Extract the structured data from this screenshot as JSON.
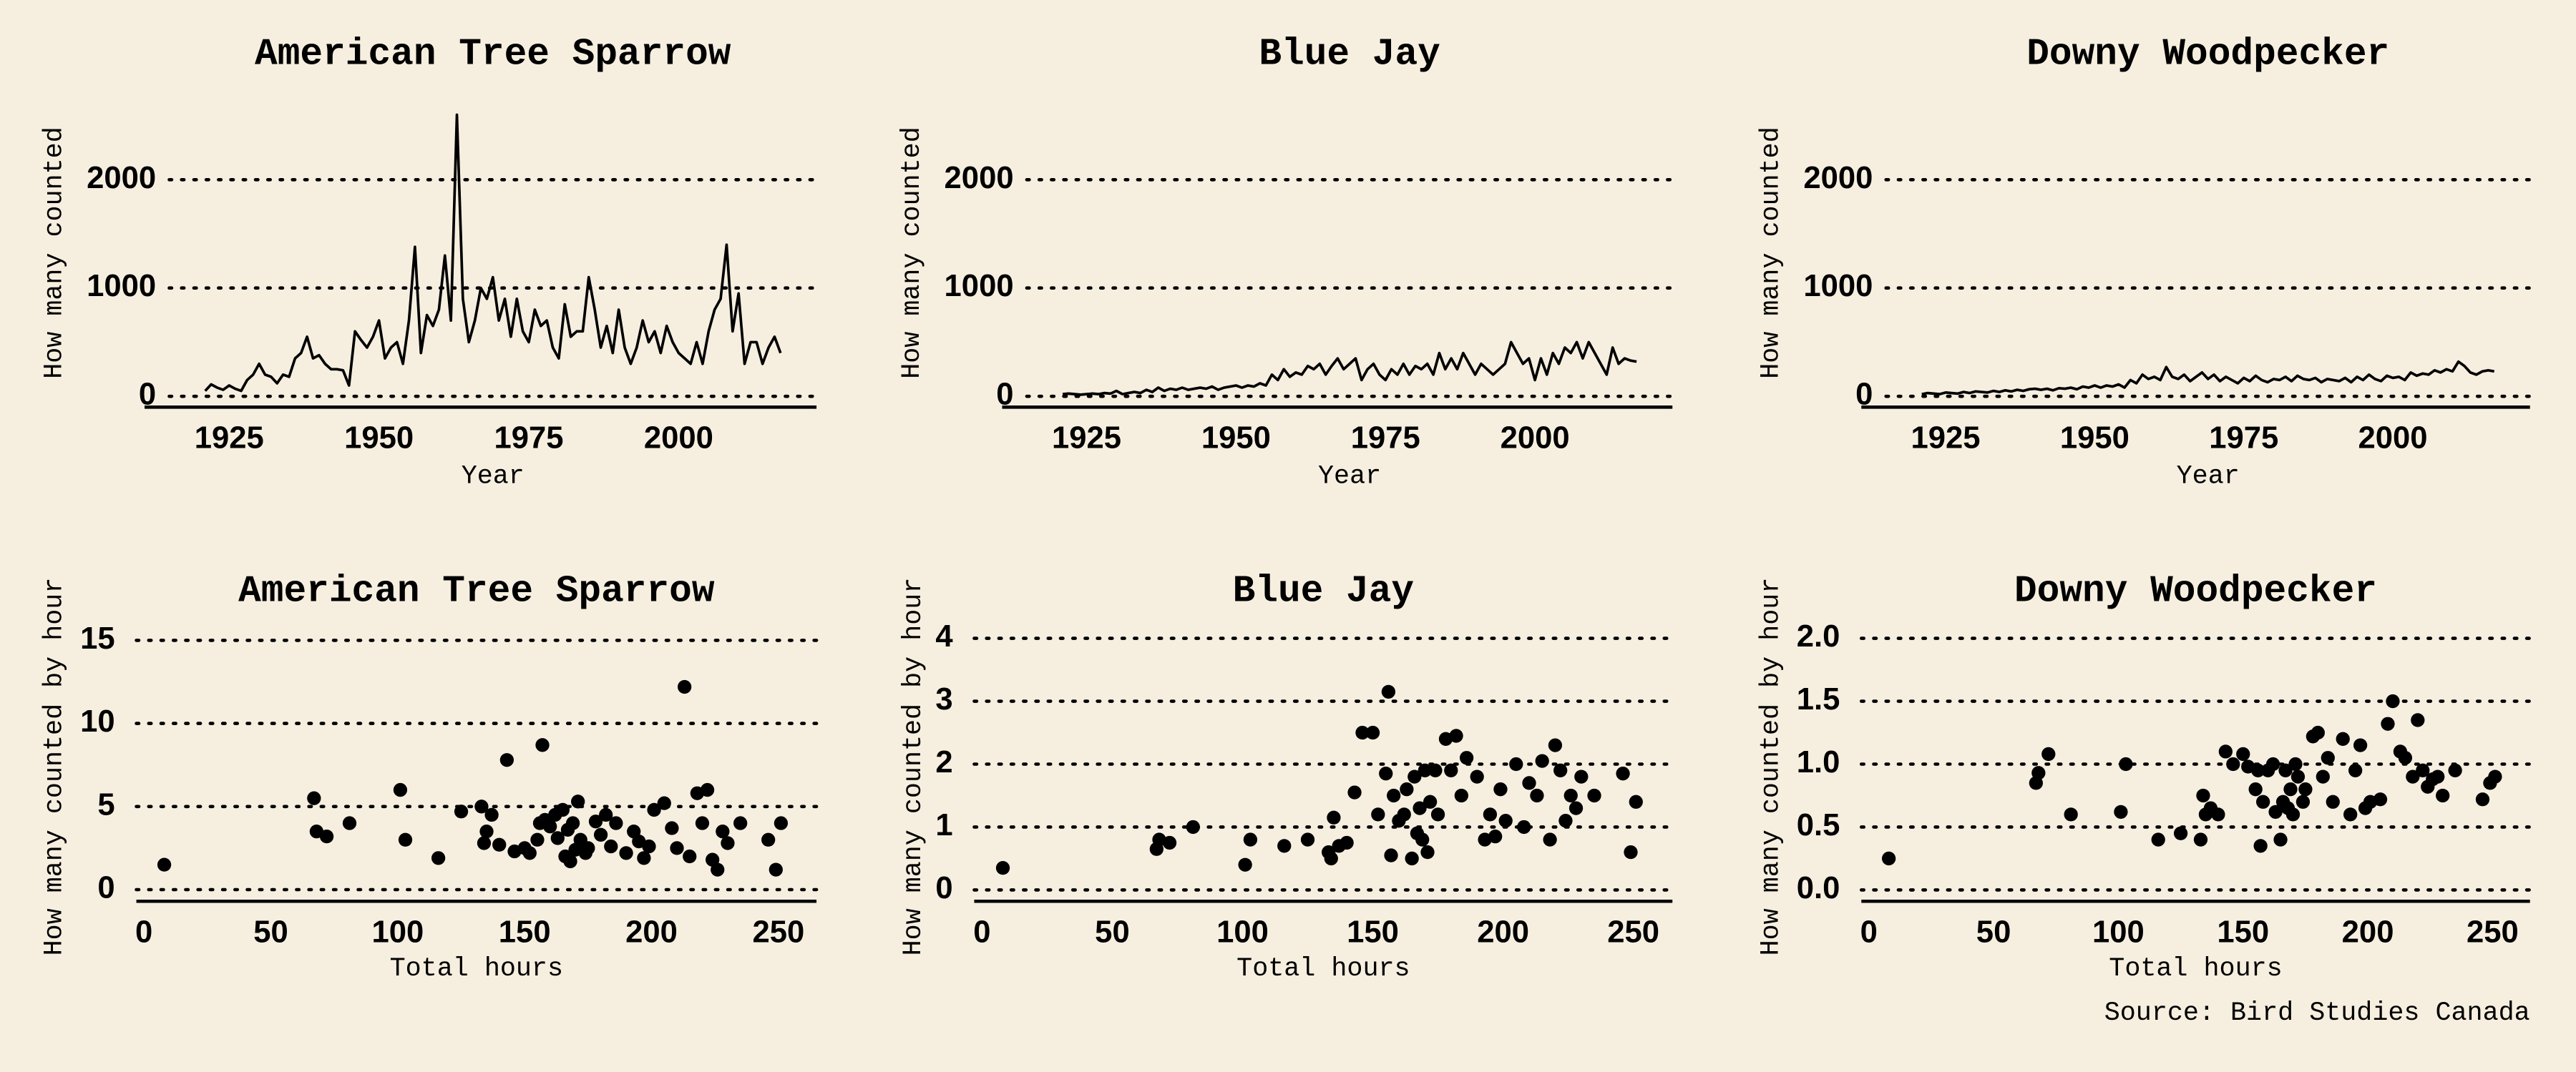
{
  "chart_data": [
    {
      "type": "line",
      "title": "American Tree Sparrow",
      "xlabel": "Year",
      "ylabel": "How many counted",
      "color": "#000000",
      "grid": true,
      "x": [
        1921,
        1922,
        1923,
        1924,
        1925,
        1926,
        1927,
        1928,
        1929,
        1930,
        1931,
        1932,
        1933,
        1934,
        1935,
        1936,
        1937,
        1938,
        1939,
        1940,
        1941,
        1942,
        1943,
        1944,
        1945,
        1946,
        1947,
        1948,
        1949,
        1950,
        1951,
        1952,
        1953,
        1954,
        1955,
        1956,
        1957,
        1958,
        1959,
        1960,
        1961,
        1962,
        1963,
        1964,
        1965,
        1966,
        1967,
        1968,
        1969,
        1970,
        1971,
        1972,
        1973,
        1974,
        1975,
        1976,
        1977,
        1978,
        1979,
        1980,
        1981,
        1982,
        1983,
        1984,
        1985,
        1986,
        1987,
        1988,
        1989,
        1990,
        1991,
        1992,
        1993,
        1994,
        1995,
        1996,
        1997,
        1998,
        1999,
        2000,
        2001,
        2002,
        2003,
        2004,
        2005,
        2006,
        2007,
        2008,
        2009,
        2010,
        2011,
        2012,
        2013,
        2014,
        2015,
        2016,
        2017
      ],
      "values": [
        50,
        110,
        80,
        60,
        100,
        70,
        50,
        150,
        200,
        300,
        200,
        180,
        120,
        200,
        180,
        350,
        400,
        550,
        350,
        380,
        300,
        250,
        250,
        240,
        100,
        600,
        520,
        450,
        550,
        700,
        350,
        450,
        500,
        300,
        700,
        1380,
        400,
        750,
        650,
        800,
        1300,
        700,
        2600,
        900,
        500,
        700,
        1000,
        900,
        1100,
        700,
        900,
        550,
        900,
        600,
        500,
        800,
        650,
        700,
        450,
        350,
        850,
        550,
        600,
        600,
        1100,
        800,
        450,
        650,
        400,
        800,
        450,
        300,
        450,
        700,
        500,
        600,
        400,
        650,
        500,
        400,
        350,
        300,
        500,
        300,
        600,
        800,
        900,
        1400,
        600,
        950,
        300,
        500,
        500,
        300,
        450,
        550,
        400
      ],
      "xlim": [
        1915,
        2023
      ],
      "xticks": [
        1925,
        1950,
        1975,
        2000
      ],
      "ylim": [
        -100,
        2750
      ],
      "yticks": [
        0,
        1000,
        2000
      ]
    },
    {
      "type": "line",
      "title": "Blue Jay",
      "xlabel": "Year",
      "ylabel": "How many counted",
      "color": "#000000",
      "grid": true,
      "x": [
        1921,
        1922,
        1923,
        1924,
        1925,
        1926,
        1927,
        1928,
        1929,
        1930,
        1931,
        1932,
        1933,
        1934,
        1935,
        1936,
        1937,
        1938,
        1939,
        1940,
        1941,
        1942,
        1943,
        1944,
        1945,
        1946,
        1947,
        1948,
        1949,
        1950,
        1951,
        1952,
        1953,
        1954,
        1955,
        1956,
        1957,
        1958,
        1959,
        1960,
        1961,
        1962,
        1963,
        1964,
        1965,
        1966,
        1967,
        1968,
        1969,
        1970,
        1971,
        1972,
        1973,
        1974,
        1975,
        1976,
        1977,
        1978,
        1979,
        1980,
        1981,
        1982,
        1983,
        1984,
        1985,
        1986,
        1987,
        1988,
        1989,
        1990,
        1991,
        1992,
        1993,
        1994,
        1995,
        1996,
        1997,
        1998,
        1999,
        2000,
        2001,
        2002,
        2003,
        2004,
        2005,
        2006,
        2007,
        2008,
        2009,
        2010,
        2011,
        2012,
        2013,
        2014,
        2015,
        2016,
        2017
      ],
      "values": [
        20,
        25,
        20,
        15,
        20,
        25,
        20,
        30,
        25,
        50,
        20,
        30,
        40,
        30,
        60,
        40,
        80,
        50,
        70,
        60,
        80,
        60,
        70,
        80,
        70,
        90,
        60,
        80,
        90,
        100,
        80,
        100,
        90,
        120,
        100,
        200,
        150,
        250,
        180,
        220,
        200,
        280,
        250,
        300,
        200,
        280,
        350,
        250,
        300,
        350,
        150,
        250,
        300,
        200,
        150,
        250,
        200,
        300,
        200,
        280,
        250,
        300,
        200,
        400,
        250,
        350,
        250,
        400,
        300,
        200,
        300,
        250,
        200,
        250,
        300,
        500,
        400,
        300,
        350,
        150,
        350,
        200,
        400,
        300,
        450,
        400,
        500,
        350,
        500,
        400,
        300,
        200,
        450,
        300,
        350,
        330,
        320
      ],
      "xlim": [
        1915,
        2023
      ],
      "xticks": [
        1925,
        1950,
        1975,
        2000
      ],
      "ylim": [
        -100,
        2750
      ],
      "yticks": [
        0,
        1000,
        2000
      ]
    },
    {
      "type": "line",
      "title": "Downy Woodpecker",
      "xlabel": "Year",
      "ylabel": "How many counted",
      "color": "#000000",
      "grid": true,
      "x": [
        1921,
        1922,
        1923,
        1924,
        1925,
        1926,
        1927,
        1928,
        1929,
        1930,
        1931,
        1932,
        1933,
        1934,
        1935,
        1936,
        1937,
        1938,
        1939,
        1940,
        1941,
        1942,
        1943,
        1944,
        1945,
        1946,
        1947,
        1948,
        1949,
        1950,
        1951,
        1952,
        1953,
        1954,
        1955,
        1956,
        1957,
        1958,
        1959,
        1960,
        1961,
        1962,
        1963,
        1964,
        1965,
        1966,
        1967,
        1968,
        1969,
        1970,
        1971,
        1972,
        1973,
        1974,
        1975,
        1976,
        1977,
        1978,
        1979,
        1980,
        1981,
        1982,
        1983,
        1984,
        1985,
        1986,
        1987,
        1988,
        1989,
        1990,
        1991,
        1992,
        1993,
        1994,
        1995,
        1996,
        1997,
        1998,
        1999,
        2000,
        2001,
        2002,
        2003,
        2004,
        2005,
        2006,
        2007,
        2008,
        2009,
        2010,
        2011,
        2012,
        2013,
        2014,
        2015,
        2016,
        2017
      ],
      "values": [
        20,
        30,
        25,
        20,
        35,
        30,
        25,
        40,
        30,
        45,
        40,
        35,
        50,
        40,
        55,
        45,
        60,
        50,
        65,
        70,
        60,
        70,
        55,
        75,
        70,
        80,
        65,
        90,
        80,
        100,
        80,
        100,
        90,
        110,
        80,
        150,
        120,
        200,
        160,
        180,
        150,
        270,
        180,
        160,
        200,
        140,
        180,
        220,
        160,
        200,
        140,
        180,
        150,
        120,
        170,
        140,
        190,
        150,
        130,
        160,
        150,
        180,
        140,
        190,
        160,
        150,
        170,
        130,
        160,
        150,
        140,
        170,
        130,
        180,
        150,
        200,
        160,
        140,
        190,
        170,
        180,
        150,
        220,
        190,
        210,
        200,
        240,
        220,
        250,
        230,
        320,
        280,
        220,
        200,
        230,
        240,
        230
      ],
      "xlim": [
        1915,
        2023
      ],
      "xticks": [
        1925,
        1950,
        1975,
        2000
      ],
      "ylim": [
        -100,
        2750
      ],
      "yticks": [
        0,
        1000,
        2000
      ]
    },
    {
      "type": "scatter",
      "title": "American Tree Sparrow",
      "xlabel": "Total hours",
      "ylabel": "How many counted by hour",
      "color": "#000000",
      "grid": true,
      "x": [
        8,
        67,
        68,
        72,
        81,
        101,
        103,
        116,
        125,
        133,
        134,
        135,
        137,
        140,
        143,
        146,
        150,
        152,
        155,
        156,
        157,
        158,
        160,
        162,
        163,
        165,
        166,
        167,
        168,
        169,
        170,
        171,
        172,
        174,
        175,
        178,
        180,
        182,
        184,
        186,
        190,
        193,
        195,
        197,
        199,
        201,
        205,
        208,
        210,
        213,
        215,
        218,
        220,
        222,
        224,
        226,
        228,
        230,
        235,
        246,
        249,
        251
      ],
      "values": [
        1.5,
        5.5,
        3.5,
        3.2,
        4.0,
        6.0,
        3.0,
        1.9,
        4.7,
        5.0,
        2.8,
        3.5,
        4.5,
        2.7,
        7.8,
        2.3,
        2.5,
        2.2,
        3.0,
        4.0,
        8.7,
        4.2,
        3.8,
        4.5,
        3.1,
        4.8,
        2.0,
        3.6,
        1.7,
        4.0,
        2.4,
        5.3,
        3.0,
        2.2,
        2.5,
        4.1,
        3.3,
        4.5,
        2.6,
        4.0,
        2.2,
        3.5,
        2.9,
        1.9,
        2.6,
        4.8,
        5.2,
        3.7,
        2.5,
        12.2,
        2.0,
        5.8,
        4.0,
        6.0,
        1.8,
        1.2,
        3.5,
        2.8,
        4.0,
        3.0,
        1.2,
        4.0
      ],
      "xlim": [
        -3,
        265
      ],
      "xticks": [
        0,
        50,
        100,
        150,
        200,
        250
      ],
      "ylim": [
        -0.7,
        15.5
      ],
      "yticks": [
        0,
        5,
        10,
        15
      ]
    },
    {
      "type": "scatter",
      "title": "Blue Jay",
      "xlabel": "Total hours",
      "ylabel": "How many counted by hour",
      "color": "#000000",
      "grid": true,
      "x": [
        8,
        67,
        68,
        72,
        81,
        101,
        103,
        116,
        125,
        133,
        134,
        135,
        137,
        140,
        143,
        146,
        150,
        152,
        155,
        156,
        157,
        158,
        160,
        162,
        163,
        165,
        166,
        167,
        168,
        169,
        170,
        171,
        172,
        174,
        175,
        178,
        180,
        182,
        184,
        186,
        190,
        193,
        195,
        197,
        199,
        201,
        205,
        208,
        210,
        213,
        215,
        218,
        220,
        222,
        224,
        226,
        228,
        230,
        235,
        246,
        249,
        251
      ],
      "values": [
        0.35,
        0.65,
        0.8,
        0.75,
        1.0,
        0.4,
        0.8,
        0.7,
        0.8,
        0.6,
        0.5,
        1.15,
        0.7,
        0.75,
        1.55,
        2.5,
        2.5,
        1.2,
        1.85,
        3.15,
        0.55,
        1.5,
        1.1,
        1.2,
        1.6,
        0.5,
        1.8,
        0.9,
        1.3,
        0.8,
        1.9,
        0.6,
        1.4,
        1.9,
        1.2,
        2.4,
        1.9,
        2.45,
        1.5,
        2.1,
        1.8,
        0.8,
        1.2,
        0.85,
        1.6,
        1.1,
        2.0,
        1.0,
        1.7,
        1.5,
        2.05,
        0.8,
        2.3,
        1.9,
        1.1,
        1.5,
        1.3,
        1.8,
        1.5,
        1.85,
        0.6,
        1.4
      ],
      "xlim": [
        -3,
        265
      ],
      "xticks": [
        0,
        50,
        100,
        150,
        200,
        250
      ],
      "ylim": [
        -0.18,
        4.1
      ],
      "yticks": [
        0,
        1,
        2,
        3,
        4
      ]
    },
    {
      "type": "scatter",
      "title": "Downy Woodpecker",
      "xlabel": "Total hours",
      "ylabel": "How many counted by hour",
      "color": "#000000",
      "grid": true,
      "x": [
        8,
        67,
        68,
        72,
        81,
        101,
        103,
        116,
        125,
        133,
        134,
        135,
        137,
        140,
        143,
        146,
        150,
        152,
        155,
        156,
        157,
        158,
        160,
        162,
        163,
        165,
        166,
        167,
        168,
        169,
        170,
        171,
        172,
        174,
        175,
        178,
        180,
        182,
        184,
        186,
        190,
        193,
        195,
        197,
        199,
        201,
        205,
        208,
        210,
        213,
        215,
        218,
        220,
        222,
        224,
        226,
        228,
        230,
        235,
        246,
        249,
        251
      ],
      "values": [
        0.25,
        0.85,
        0.93,
        1.08,
        0.6,
        0.62,
        1.0,
        0.4,
        0.45,
        0.4,
        0.75,
        0.6,
        0.65,
        0.6,
        1.1,
        1.0,
        1.08,
        0.98,
        0.8,
        0.95,
        0.35,
        0.7,
        0.95,
        1.0,
        0.62,
        0.4,
        0.7,
        0.95,
        0.65,
        0.8,
        0.6,
        1.0,
        0.9,
        0.7,
        0.8,
        1.22,
        1.25,
        0.9,
        1.05,
        0.7,
        1.2,
        0.6,
        0.95,
        1.15,
        0.65,
        0.7,
        0.72,
        1.32,
        1.5,
        1.1,
        1.05,
        0.9,
        1.35,
        0.95,
        0.82,
        0.88,
        0.9,
        0.75,
        0.95,
        0.72,
        0.85,
        0.9
      ],
      "xlim": [
        -3,
        265
      ],
      "xticks": [
        0,
        50,
        100,
        150,
        200,
        250
      ],
      "ylim": [
        -0.09,
        2.05
      ],
      "yticks": [
        {
          "value": 0,
          "label": "0.0"
        },
        0.5,
        {
          "value": 1,
          "label": "1.0"
        },
        1.5,
        {
          "value": 2,
          "label": "2.0"
        }
      ]
    }
  ],
  "source": "Source: Bird Studies Canada"
}
